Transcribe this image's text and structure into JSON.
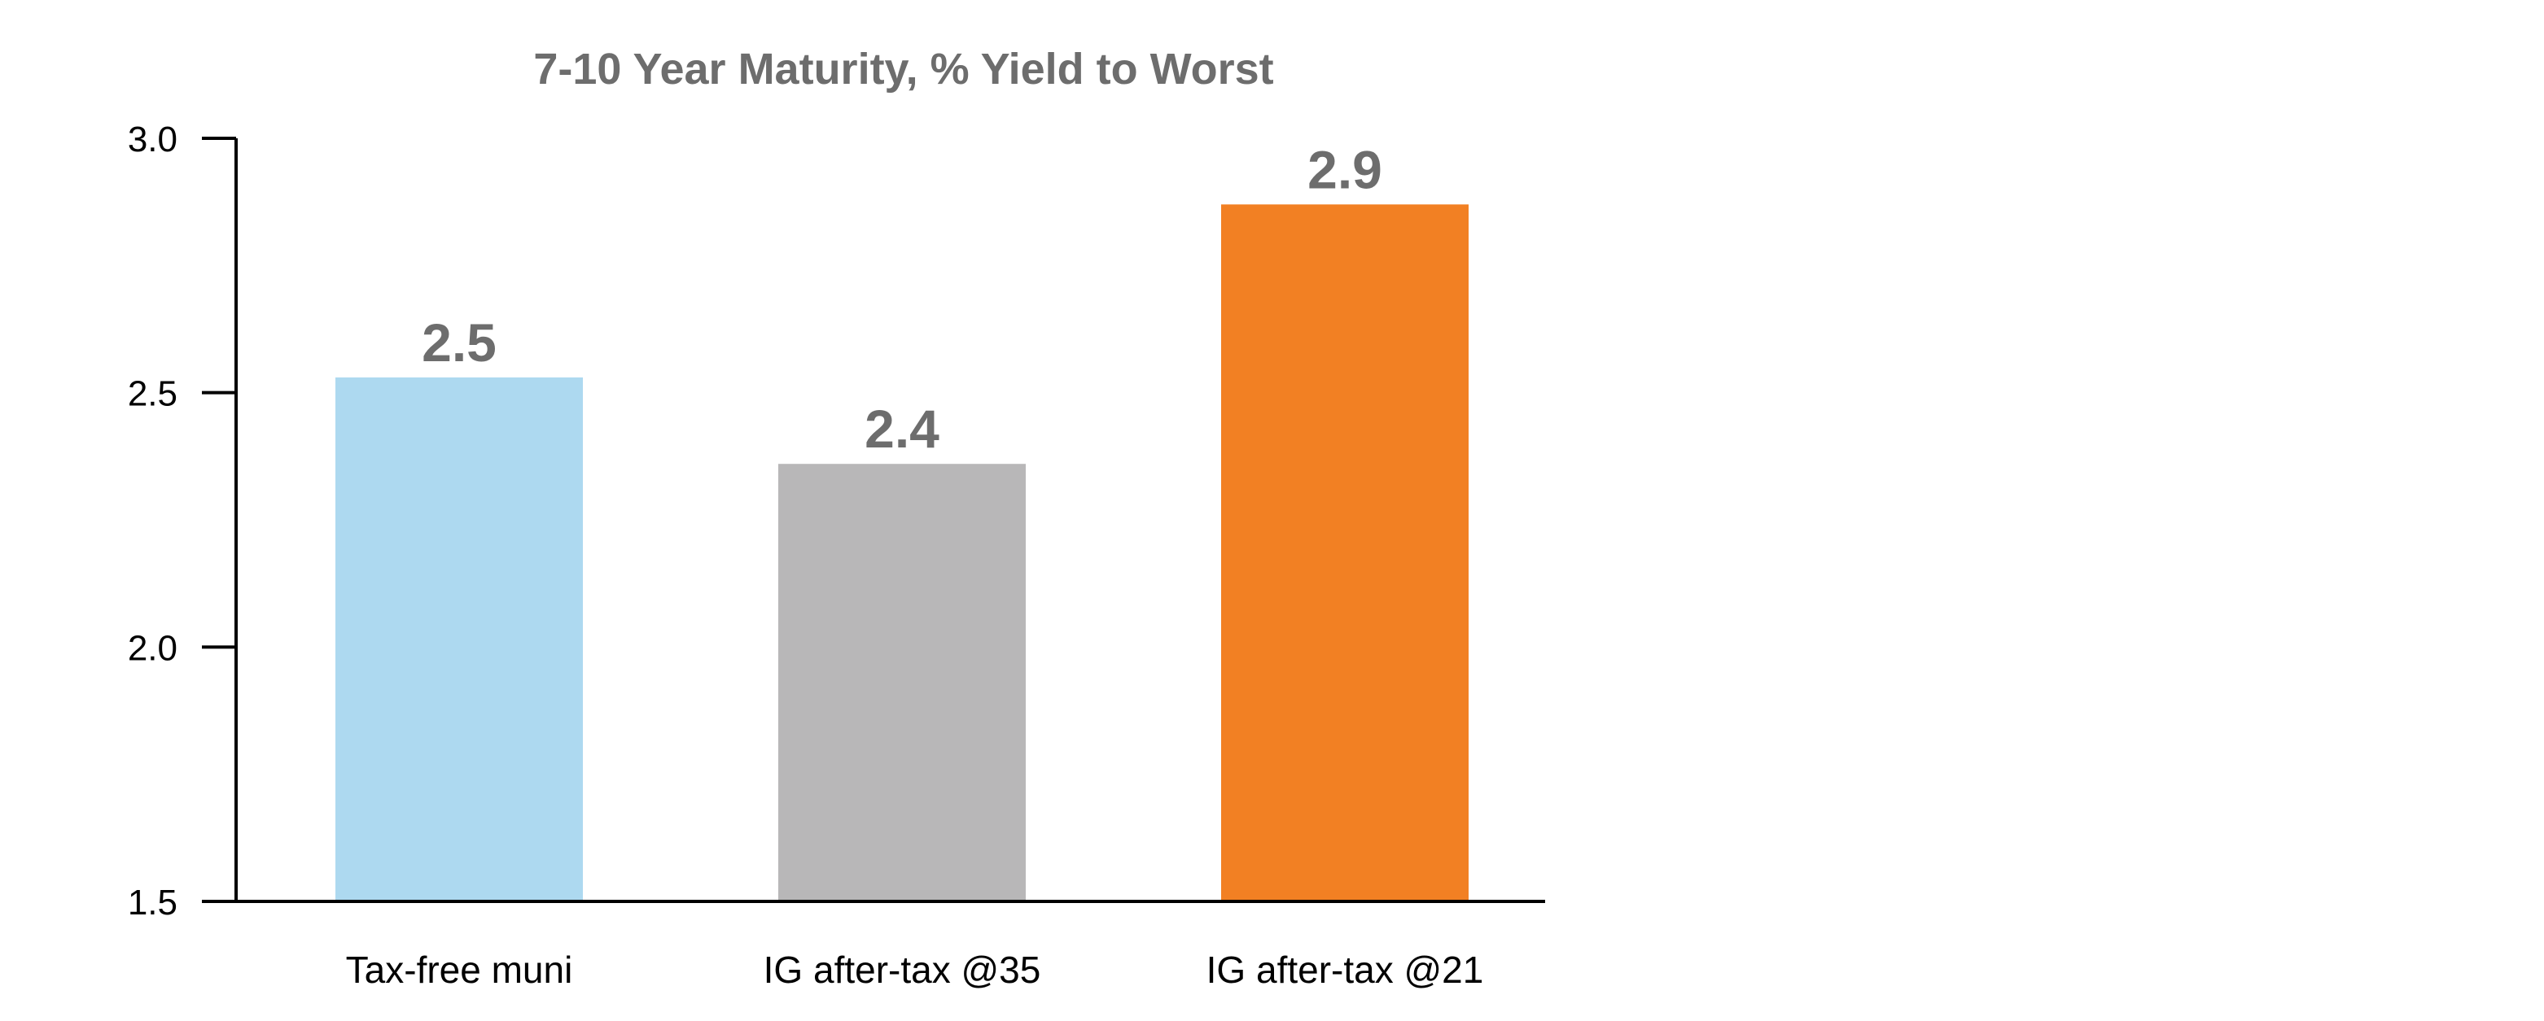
{
  "chart_data": {
    "type": "bar",
    "title": "7-10 Year Maturity, % Yield to Worst",
    "xlabel": "",
    "ylabel": "",
    "categories": [
      "Tax-free muni",
      "IG after-tax @35",
      "IG after-tax @21"
    ],
    "values": [
      2.53,
      2.36,
      2.87
    ],
    "data_labels": [
      "2.5",
      "2.4",
      "2.9"
    ],
    "ylim": [
      1.5,
      3.0
    ],
    "yticks": [
      1.5,
      2.0,
      2.5,
      3.0
    ],
    "ytick_labels": [
      "1.5",
      "2.0",
      "2.5",
      "3.0"
    ],
    "colors": [
      "#add9f0",
      "#b8b7b8",
      "#f28023"
    ],
    "grid": false,
    "legend": "none"
  }
}
